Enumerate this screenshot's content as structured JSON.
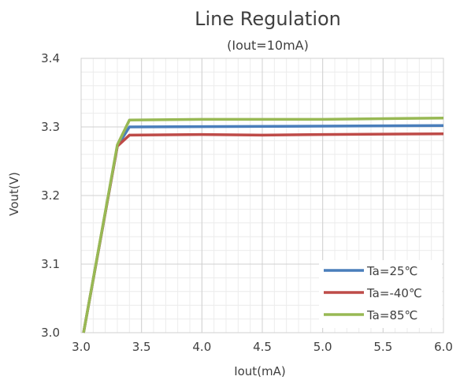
{
  "chart_data": {
    "type": "line",
    "title": "Line Regulation",
    "subtitle": "(Iout=10mA)",
    "xlabel": "Iout(mA)",
    "ylabel": "Vout(V)",
    "xlim": [
      3.0,
      6.0
    ],
    "ylim": [
      3.0,
      3.4
    ],
    "xticks": [
      "3.0",
      "3.5",
      "4.0",
      "4.5",
      "5.0",
      "5.5",
      "6.0"
    ],
    "yticks": [
      "3.0",
      "3.1",
      "3.2",
      "3.3",
      "3.4"
    ],
    "grid": true,
    "legend_position": "bottom-right",
    "series": [
      {
        "name": "Ta=25℃",
        "color": "#4A7EBB",
        "x": [
          3.02,
          3.3,
          3.4,
          6.0
        ],
        "y": [
          3.0,
          3.272,
          3.3,
          3.302
        ]
      },
      {
        "name": "Ta=-40℃",
        "color": "#BE4B48",
        "x": [
          3.02,
          3.3,
          3.4,
          4.0,
          4.5,
          5.0,
          6.0
        ],
        "y": [
          3.0,
          3.272,
          3.288,
          3.289,
          3.288,
          3.289,
          3.29
        ]
      },
      {
        "name": "Ta=85℃",
        "color": "#98B954",
        "x": [
          3.02,
          3.3,
          3.4,
          4.0,
          5.0,
          6.0
        ],
        "y": [
          3.0,
          3.274,
          3.31,
          3.311,
          3.311,
          3.313
        ]
      }
    ]
  }
}
